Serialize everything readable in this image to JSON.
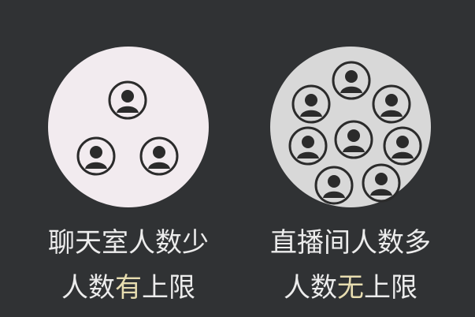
{
  "left": {
    "line1": "聊天室人数少",
    "line2_prefix": "人数",
    "line2_accent": "有",
    "line2_suffix": "上限",
    "avatar_count": 3
  },
  "right": {
    "line1": "直播间人数多",
    "line2_prefix": "人数",
    "line2_accent": "无",
    "line2_suffix": "上限",
    "avatar_count": 8
  },
  "colors": {
    "background": "#303234",
    "left_circle": "#f2ebef",
    "right_circle": "#d8d8d8",
    "text": "#ececec",
    "accent": "#e7ddb0",
    "avatar": "#2b2b2b"
  },
  "icons": {
    "avatar": "user-avatar-icon"
  }
}
